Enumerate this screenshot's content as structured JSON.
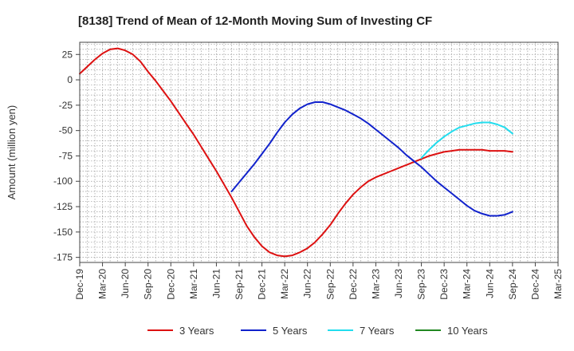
{
  "chart_data": {
    "type": "line",
    "title": "[8138]  Trend of Mean of 12-Month Moving Sum of Investing CF",
    "ylabel": "Amount (million yen)",
    "xlabel": "",
    "x_ticks": [
      "Dec-19",
      "Mar-20",
      "Jun-20",
      "Sep-20",
      "Dec-20",
      "Mar-21",
      "Jun-21",
      "Sep-21",
      "Dec-21",
      "Mar-22",
      "Jun-22",
      "Sep-22",
      "Dec-22",
      "Mar-23",
      "Jun-23",
      "Sep-23",
      "Dec-23",
      "Mar-24",
      "Jun-24",
      "Sep-24",
      "Dec-24",
      "Mar-25"
    ],
    "y_ticks": [
      25,
      0,
      -25,
      -50,
      -75,
      -100,
      -125,
      -150,
      -175
    ],
    "ylim": [
      -180,
      37
    ],
    "grid": true,
    "legend_position": "bottom",
    "series": [
      {
        "name": "3 Years",
        "color": "#dd1111",
        "x": [
          "Dec-19",
          "Jan-20",
          "Feb-20",
          "Mar-20",
          "Apr-20",
          "May-20",
          "Jun-20",
          "Jul-20",
          "Aug-20",
          "Sep-20",
          "Oct-20",
          "Nov-20",
          "Dec-20",
          "Jan-21",
          "Feb-21",
          "Mar-21",
          "Apr-21",
          "May-21",
          "Jun-21",
          "Jul-21",
          "Aug-21",
          "Sep-21",
          "Oct-21",
          "Nov-21",
          "Dec-21",
          "Jan-22",
          "Feb-22",
          "Mar-22",
          "Apr-22",
          "May-22",
          "Jun-22",
          "Jul-22",
          "Aug-22",
          "Sep-22",
          "Oct-22",
          "Nov-22",
          "Dec-22",
          "Jan-23",
          "Feb-23",
          "Mar-23",
          "Apr-23",
          "May-23",
          "Jun-23",
          "Jul-23",
          "Aug-23",
          "Sep-23",
          "Oct-23",
          "Nov-23",
          "Dec-23",
          "Jan-24",
          "Feb-24",
          "Mar-24",
          "Apr-24",
          "May-24",
          "Jun-24",
          "Jul-24",
          "Aug-24",
          "Sep-24"
        ],
        "values": [
          6,
          13,
          20,
          26,
          30,
          31,
          29,
          25,
          18,
          8,
          -1,
          -11,
          -21,
          -32,
          -43,
          -54,
          -66,
          -78,
          -90,
          -103,
          -116,
          -130,
          -144,
          -155,
          -164,
          -170,
          -173,
          -174,
          -173,
          -170,
          -166,
          -160,
          -152,
          -143,
          -132,
          -122,
          -113,
          -106,
          -100,
          -96,
          -93,
          -90,
          -87,
          -84,
          -81,
          -78,
          -75,
          -73,
          -71,
          -70,
          -69,
          -69,
          -69,
          -69,
          -70,
          -70,
          -70,
          -71
        ]
      },
      {
        "name": "5 Years",
        "color": "#1122cc",
        "x": [
          "Aug-21",
          "Sep-21",
          "Oct-21",
          "Nov-21",
          "Dec-21",
          "Jan-22",
          "Feb-22",
          "Mar-22",
          "Apr-22",
          "May-22",
          "Jun-22",
          "Jul-22",
          "Aug-22",
          "Sep-22",
          "Oct-22",
          "Nov-22",
          "Dec-22",
          "Jan-23",
          "Feb-23",
          "Mar-23",
          "Apr-23",
          "May-23",
          "Jun-23",
          "Jul-23",
          "Aug-23",
          "Sep-23",
          "Oct-23",
          "Nov-23",
          "Dec-23",
          "Jan-24",
          "Feb-24",
          "Mar-24",
          "Apr-24",
          "May-24",
          "Jun-24",
          "Jul-24",
          "Aug-24",
          "Sep-24"
        ],
        "values": [
          -110,
          -101,
          -92,
          -83,
          -73,
          -63,
          -52,
          -42,
          -34,
          -28,
          -24,
          -22,
          -22,
          -24,
          -27,
          -30,
          -34,
          -38,
          -43,
          -49,
          -55,
          -61,
          -67,
          -74,
          -80,
          -86,
          -93,
          -100,
          -106,
          -112,
          -118,
          -124,
          -129,
          -132,
          -134,
          -134,
          -133,
          -130
        ]
      },
      {
        "name": "7 Years",
        "color": "#22ddee",
        "x": [
          "Sep-23",
          "Oct-23",
          "Nov-23",
          "Dec-23",
          "Jan-24",
          "Feb-24",
          "Mar-24",
          "Apr-24",
          "May-24",
          "Jun-24",
          "Jul-24",
          "Aug-24",
          "Sep-24"
        ],
        "values": [
          -77,
          -69,
          -62,
          -56,
          -51,
          -47,
          -45,
          -43,
          -42,
          -42,
          -44,
          -47,
          -53
        ]
      },
      {
        "name": "10 Years",
        "color": "#228822",
        "x": [],
        "values": []
      }
    ]
  }
}
